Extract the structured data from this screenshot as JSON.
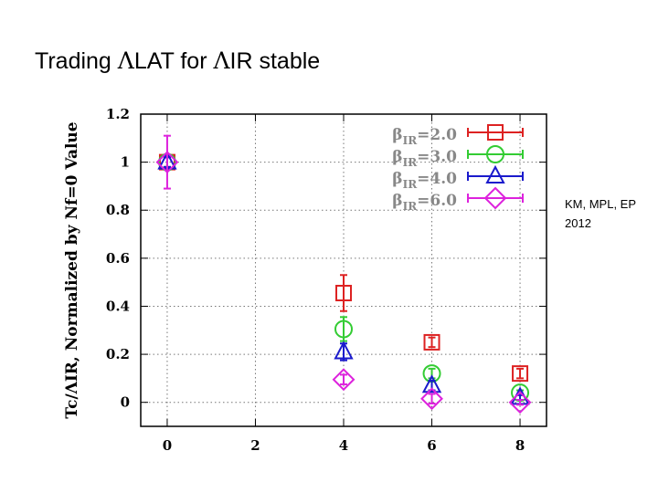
{
  "slide": {
    "title_prefix": "Trading ",
    "title_sym1": "Λ",
    "title_mid": "LAT for ",
    "title_sym2": "Λ",
    "title_suffix": "IR stable",
    "credit_line1": "KM, MPL, EP",
    "credit_line2": "2012"
  },
  "chart_data": {
    "type": "scatter",
    "title": "",
    "xlabel": "",
    "ylabel": "Tc/ΛIR, Normalized by Nf=0 Value",
    "xlim": [
      -0.6,
      8.6
    ],
    "ylim": [
      -0.1,
      1.2
    ],
    "x_ticks": [
      "0",
      "2",
      "4",
      "6",
      "8"
    ],
    "y_ticks": [
      "0",
      "0.2",
      "0.4",
      "0.6",
      "0.8",
      "1",
      "1.2"
    ],
    "x_tick_values": [
      0,
      2,
      4,
      6,
      8
    ],
    "y_tick_values": [
      0,
      0.2,
      0.4,
      0.6,
      0.8,
      1.0,
      1.2
    ],
    "grid": true,
    "legend_position": "top-right",
    "series": [
      {
        "name": "βIR=2.0",
        "label_base": "β",
        "label_sub": "IR",
        "label_tail": "=2.0",
        "color": "#dd2222",
        "marker": "square",
        "x": [
          0,
          4,
          6,
          8
        ],
        "y": [
          1.0,
          0.455,
          0.25,
          0.12
        ],
        "err": [
          0.02,
          0.075,
          0.02,
          0.02
        ]
      },
      {
        "name": "βIR=3.0",
        "label_base": "β",
        "label_sub": "IR",
        "label_tail": "=3.0",
        "color": "#33cc33",
        "marker": "circle",
        "x": [
          0,
          4,
          6,
          8
        ],
        "y": [
          1.0,
          0.305,
          0.12,
          0.04
        ],
        "err": [
          0.02,
          0.05,
          0.02,
          0.01
        ]
      },
      {
        "name": "βIR=4.0",
        "label_base": "β",
        "label_sub": "IR",
        "label_tail": "=4.0",
        "color": "#1a1acc",
        "marker": "triangle",
        "x": [
          0,
          4,
          6,
          8
        ],
        "y": [
          1.0,
          0.21,
          0.07,
          0.02
        ],
        "err": [
          0.02,
          0.035,
          0.02,
          0.01
        ]
      },
      {
        "name": "βIR=6.0",
        "label_base": "β",
        "label_sub": "IR",
        "label_tail": "=6.0",
        "color": "#dd22dd",
        "marker": "diamond",
        "x": [
          0,
          4,
          6,
          8
        ],
        "y": [
          1.0,
          0.095,
          0.015,
          0.0
        ],
        "err": [
          0.11,
          0.02,
          0.02,
          0.01
        ]
      }
    ]
  }
}
